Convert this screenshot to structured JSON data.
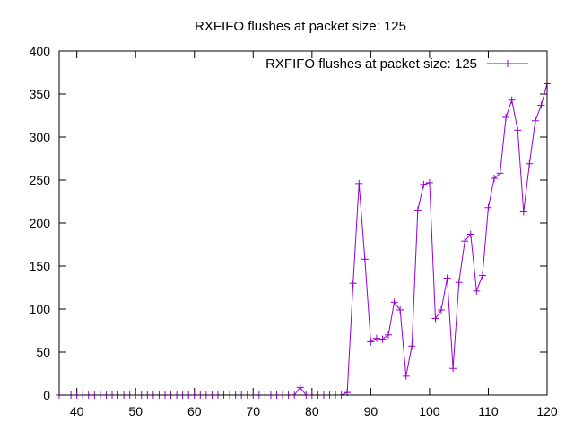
{
  "chart_data": {
    "type": "line",
    "title": "RXFIFO flushes at packet size: 125",
    "xlabel": "",
    "ylabel": "",
    "xlim": [
      37,
      120
    ],
    "ylim": [
      0,
      400
    ],
    "x_ticks": [
      "40",
      "50",
      "60",
      "70",
      "80",
      "90",
      "100",
      "110",
      "120"
    ],
    "y_ticks": [
      "0",
      "50",
      "100",
      "150",
      "200",
      "250",
      "300",
      "350",
      "400"
    ],
    "grid": false,
    "legend_position": "top-right",
    "series": [
      {
        "name": "RXFIFO flushes at packet size: 125",
        "color": "#9400d3",
        "marker": "plus",
        "x": [
          37,
          38,
          39,
          40,
          41,
          42,
          43,
          44,
          45,
          46,
          47,
          48,
          49,
          50,
          51,
          52,
          53,
          54,
          55,
          56,
          57,
          58,
          59,
          60,
          61,
          62,
          63,
          64,
          65,
          66,
          67,
          68,
          69,
          70,
          71,
          72,
          73,
          74,
          75,
          76,
          77,
          78,
          79,
          80,
          81,
          82,
          83,
          84,
          85,
          86,
          87,
          88,
          89,
          90,
          91,
          92,
          93,
          94,
          95,
          96,
          97,
          98,
          99,
          100,
          101,
          102,
          103,
          104,
          105,
          106,
          107,
          108,
          109,
          110,
          111,
          112,
          113,
          114,
          115,
          116,
          117,
          118,
          119,
          120
        ],
        "y": [
          0,
          0,
          0,
          0,
          0,
          0,
          0,
          0,
          0,
          0,
          0,
          0,
          0,
          0,
          0,
          0,
          0,
          0,
          0,
          0,
          0,
          0,
          0,
          0,
          0,
          0,
          0,
          0,
          0,
          0,
          0,
          0,
          0,
          0,
          0,
          0,
          0,
          0,
          0,
          0,
          0,
          9,
          0,
          0,
          0,
          0,
          0,
          0,
          0,
          3,
          130,
          246,
          158,
          62,
          66,
          65,
          70,
          108,
          99,
          22,
          57,
          215,
          245,
          247,
          89,
          99,
          136,
          31,
          131,
          179,
          187,
          121,
          139,
          218,
          252,
          258,
          323,
          343,
          308,
          213,
          269,
          319,
          337,
          362
        ]
      }
    ]
  }
}
